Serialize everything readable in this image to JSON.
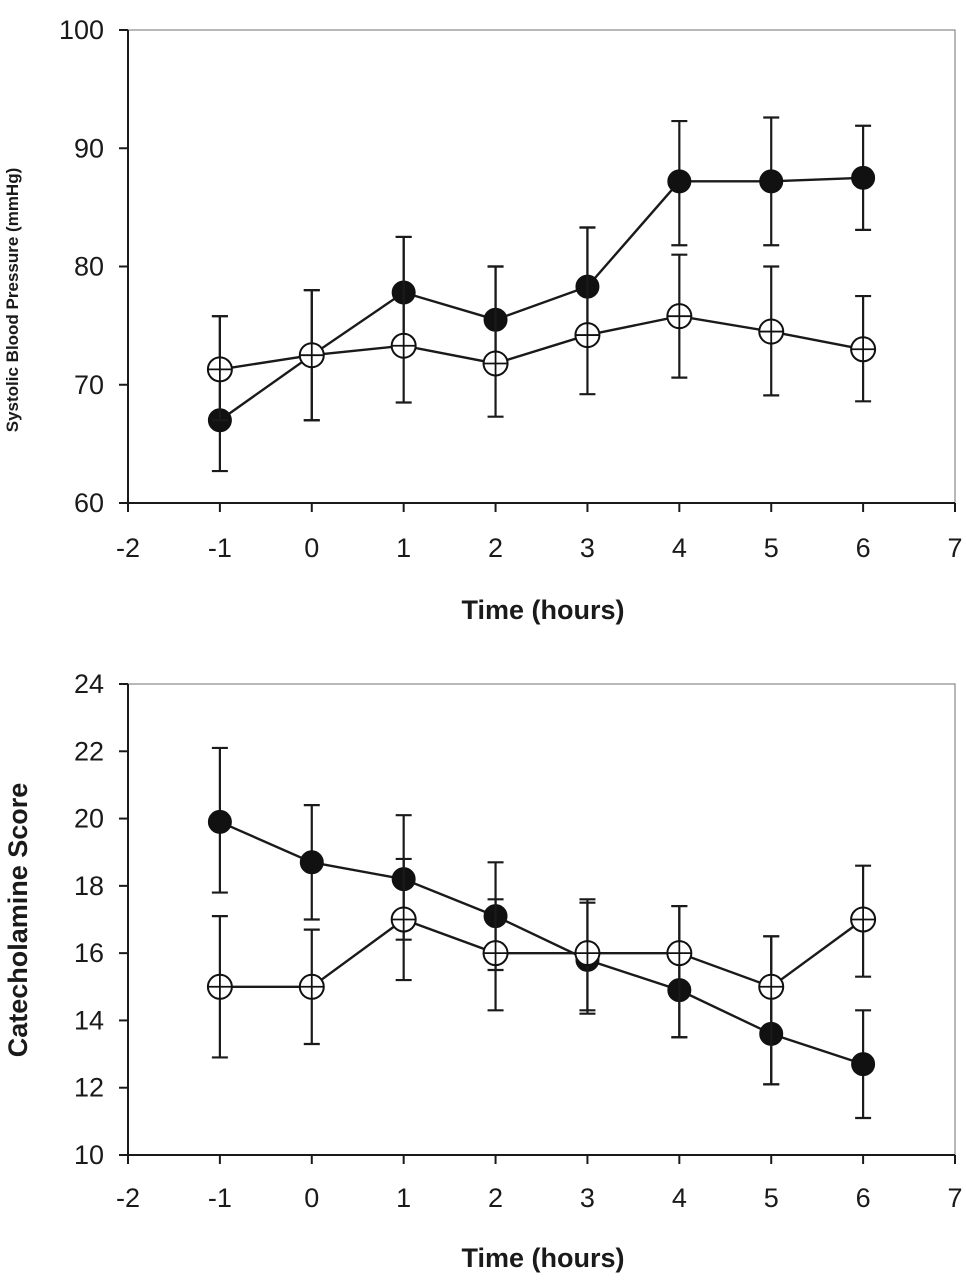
{
  "chart_data": [
    {
      "type": "line",
      "xlabel": "Time (hours)",
      "ylabel": "Systolic Blood Pressure (mmHg)",
      "xlim": [
        -2,
        7
      ],
      "ylim": [
        60,
        100
      ],
      "xticks": [
        "-2",
        "-1",
        "0",
        "1",
        "2",
        "3",
        "4",
        "5",
        "6",
        "7"
      ],
      "yticks": [
        "60",
        "70",
        "80",
        "90",
        "100"
      ],
      "grid": false,
      "legend": "none",
      "x": [
        -1,
        0,
        1,
        2,
        3,
        4,
        5,
        6
      ],
      "series": [
        {
          "marker": "filled-circle",
          "values": [
            67.0,
            72.5,
            77.8,
            75.5,
            78.3,
            87.2,
            87.2,
            87.5
          ],
          "err_upper": [
            75.8,
            78.0,
            82.5,
            80.0,
            83.3,
            92.3,
            92.6,
            91.9
          ],
          "err_lower": [
            62.7,
            67.0,
            73.3,
            71.0,
            73.5,
            81.8,
            81.8,
            83.1
          ]
        },
        {
          "marker": "open-circle",
          "values": [
            71.3,
            72.5,
            73.3,
            71.8,
            74.2,
            75.8,
            74.5,
            73.0
          ],
          "err_upper": [
            75.8,
            78.0,
            82.5,
            80.0,
            83.3,
            81.0,
            80.0,
            77.5
          ],
          "err_lower": [
            67.0,
            67.0,
            68.5,
            67.3,
            69.2,
            70.6,
            69.1,
            68.6
          ]
        }
      ]
    },
    {
      "type": "line",
      "xlabel": "Time (hours)",
      "ylabel": "Catecholamine Score",
      "xlim": [
        -2,
        7
      ],
      "ylim": [
        10,
        24
      ],
      "xticks": [
        "-2",
        "-1",
        "0",
        "1",
        "2",
        "3",
        "4",
        "5",
        "6",
        "7"
      ],
      "yticks": [
        "10",
        "12",
        "14",
        "16",
        "18",
        "20",
        "22",
        "24"
      ],
      "grid": false,
      "legend": "none",
      "x": [
        -1,
        0,
        1,
        2,
        3,
        4,
        5,
        6
      ],
      "series": [
        {
          "marker": "filled-circle",
          "values": [
            19.9,
            18.7,
            18.2,
            17.1,
            15.8,
            14.9,
            13.6,
            12.7
          ],
          "err_upper": [
            22.1,
            20.4,
            20.1,
            18.7,
            17.5,
            17.4,
            16.5,
            14.3
          ],
          "err_lower": [
            17.8,
            17.0,
            16.4,
            15.5,
            14.2,
            13.5,
            12.1,
            11.1
          ]
        },
        {
          "marker": "open-circle",
          "values": [
            15.0,
            15.0,
            17.0,
            16.0,
            16.0,
            16.0,
            15.0,
            17.0
          ],
          "err_upper": [
            17.1,
            16.7,
            18.8,
            17.6,
            17.6,
            17.4,
            16.5,
            18.6
          ],
          "err_lower": [
            12.9,
            13.3,
            15.2,
            14.3,
            14.3,
            13.5,
            12.1,
            15.3
          ]
        }
      ]
    }
  ]
}
